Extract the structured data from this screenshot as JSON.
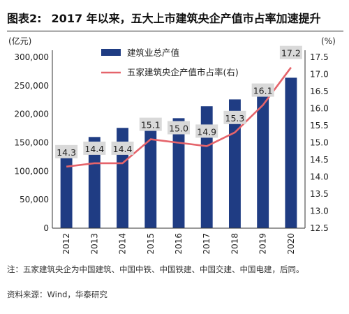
{
  "header": {
    "figure_label": "图表2:",
    "title": "2017 年以来，五大上市建筑央企产值市占率加速提升"
  },
  "chart_data": {
    "type": "bar",
    "categories": [
      "2012",
      "2013",
      "2014",
      "2015",
      "2016",
      "2017",
      "2018",
      "2019",
      "2020"
    ],
    "series": [
      {
        "name": "建筑业总产值",
        "kind": "bar",
        "axis": "left",
        "color": "#1f3c83",
        "values": [
          137000,
          160000,
          176000,
          180000,
          193000,
          214000,
          226000,
          248000,
          264000
        ]
      },
      {
        "name": "五家建筑央企产值市占率(右)",
        "kind": "line",
        "axis": "right",
        "color": "#e5646b",
        "values": [
          14.3,
          14.4,
          14.4,
          15.1,
          15.0,
          14.9,
          15.3,
          16.1,
          17.2
        ],
        "labels": [
          "14.3",
          "14.4",
          "14.4",
          "15.1",
          "15.0",
          "14.9",
          "15.3",
          "16.1",
          "17.2"
        ]
      }
    ],
    "left_axis": {
      "unit": "(亿元)",
      "ylim": [
        0,
        300000
      ],
      "ticks": [
        "0",
        "50,000",
        "100,000",
        "150,000",
        "200,000",
        "250,000",
        "300,000"
      ]
    },
    "right_axis": {
      "unit": "(%)",
      "ylim": [
        12.5,
        17.5
      ],
      "ticks": [
        "12.5",
        "13.0",
        "13.5",
        "14.0",
        "14.5",
        "15.0",
        "15.5",
        "16.0",
        "16.5",
        "17.0",
        "17.5"
      ]
    },
    "legend_position": "top-left inside plot",
    "grid": false
  },
  "footnotes": {
    "note": "注：五家建筑央企为中国建筑、中国中铁、中国铁建、中国交建、中国电建，后同。",
    "source": "资料来源：Wind，华泰研究"
  }
}
